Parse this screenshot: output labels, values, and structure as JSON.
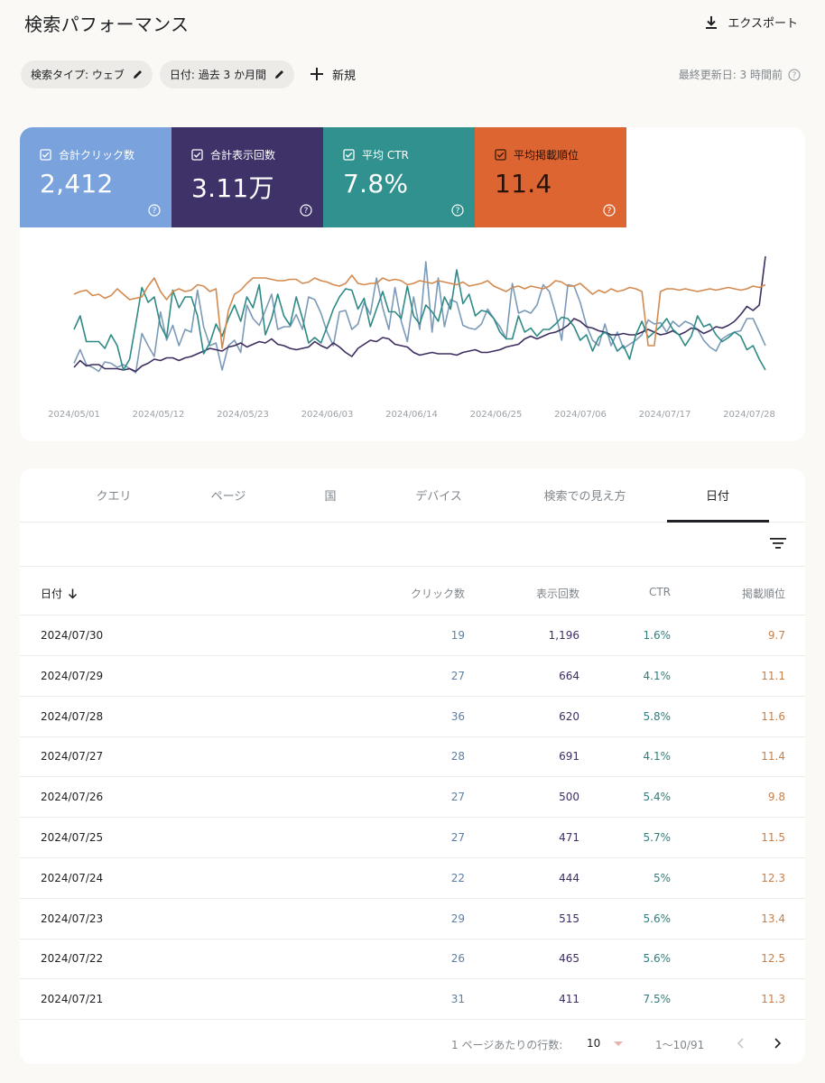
{
  "header": {
    "title": "検索パフォーマンス",
    "export_label": "エクスポート"
  },
  "filters": {
    "search_type": "検索タイプ: ウェブ",
    "date": "日付: 過去 3 か月間",
    "new_label": "新規",
    "last_updated": "最終更新日: 3 時間前"
  },
  "metrics": [
    {
      "label": "合計クリック数",
      "value": "2,412",
      "color": "#7aa3dd"
    },
    {
      "label": "合計表示回数",
      "value": "3.11万",
      "color": "#3e3269"
    },
    {
      "label": "平均 CTR",
      "value": "7.8%",
      "color": "#30918e"
    },
    {
      "label": "平均掲載順位",
      "value": "11.4",
      "color": "#dd6531"
    }
  ],
  "chart_data": {
    "type": "line",
    "x_tick_labels": [
      "2024/05/01",
      "2024/05/12",
      "2024/05/23",
      "2024/06/03",
      "2024/06/14",
      "2024/06/25",
      "2024/07/06",
      "2024/07/17",
      "2024/07/28"
    ],
    "axes_visible": false,
    "grid": false,
    "legend": "metric tiles above chart",
    "series": [
      {
        "name": "合計クリック数",
        "color": "#7b9ab8",
        "values": [
          0.17,
          0.27,
          0.16,
          0.14,
          0.11,
          0.18,
          0.17,
          0.14,
          0.16,
          0.13,
          0.1,
          0.39,
          0.3,
          0.22,
          0.55,
          0.34,
          0.45,
          0.3,
          0.42,
          0.4,
          0.71,
          0.44,
          0.3,
          0.32,
          0.12,
          0.3,
          0.34,
          0.25,
          0.6,
          0.5,
          0.45,
          0.56,
          0.68,
          0.42,
          0.44,
          0.44,
          0.53,
          0.42,
          0.66,
          0.64,
          0.54,
          0.4,
          0.3,
          0.55,
          0.56,
          0.42,
          0.46,
          0.62,
          0.53,
          0.8,
          0.58,
          0.42,
          0.73,
          0.48,
          0.33,
          0.66,
          0.42,
          0.92,
          0.4,
          0.8,
          0.44,
          0.64,
          0.62,
          0.45,
          0.43,
          0.42,
          0.46,
          0.57,
          0.5,
          0.44,
          0.35,
          0.76,
          0.54,
          0.56,
          0.54,
          0.6,
          0.75,
          0.7,
          0.54,
          0.34,
          0.75,
          0.74,
          0.62,
          0.45,
          0.34,
          0.3,
          0.46,
          0.3,
          0.4,
          0.28,
          0.31,
          0.34,
          0.38,
          0.49,
          0.46,
          0.47,
          0.4,
          0.48,
          0.44,
          0.48,
          0.46,
          0.42,
          0.34,
          0.29,
          0.26,
          0.35,
          0.38,
          0.4,
          0.41,
          0.5,
          0.5,
          0.4,
          0.3
        ]
      },
      {
        "name": "合計表示回数",
        "color": "#3e2e5f",
        "values": [
          0.14,
          0.19,
          0.15,
          0.16,
          0.16,
          0.13,
          0.13,
          0.13,
          0.12,
          0.13,
          0.11,
          0.15,
          0.17,
          0.2,
          0.19,
          0.21,
          0.21,
          0.19,
          0.21,
          0.22,
          0.24,
          0.26,
          0.28,
          0.27,
          0.26,
          0.29,
          0.3,
          0.32,
          0.29,
          0.31,
          0.33,
          0.32,
          0.35,
          0.31,
          0.3,
          0.28,
          0.27,
          0.28,
          0.29,
          0.33,
          0.3,
          0.28,
          0.32,
          0.29,
          0.25,
          0.22,
          0.28,
          0.31,
          0.34,
          0.33,
          0.36,
          0.35,
          0.31,
          0.3,
          0.29,
          0.25,
          0.23,
          0.24,
          0.25,
          0.24,
          0.24,
          0.24,
          0.23,
          0.25,
          0.26,
          0.27,
          0.25,
          0.25,
          0.26,
          0.27,
          0.29,
          0.3,
          0.31,
          0.35,
          0.37,
          0.35,
          0.37,
          0.39,
          0.4,
          0.42,
          0.45,
          0.5,
          0.48,
          0.44,
          0.43,
          0.41,
          0.4,
          0.38,
          0.38,
          0.39,
          0.38,
          0.38,
          0.4,
          0.42,
          0.4,
          0.38,
          0.39,
          0.41,
          0.38,
          0.4,
          0.43,
          0.42,
          0.39,
          0.41,
          0.44,
          0.43,
          0.45,
          0.48,
          0.53,
          0.59,
          0.56,
          0.6,
          0.96
        ]
      },
      {
        "name": "平均 CTR",
        "color": "#2e8a86",
        "values": [
          0.42,
          0.52,
          0.33,
          0.33,
          0.33,
          0.28,
          0.38,
          0.3,
          0.12,
          0.2,
          0.46,
          0.73,
          0.62,
          0.66,
          0.45,
          0.36,
          0.71,
          0.58,
          0.66,
          0.66,
          0.52,
          0.24,
          0.32,
          0.46,
          0.37,
          0.5,
          0.6,
          0.48,
          0.66,
          0.58,
          0.75,
          0.38,
          0.5,
          0.68,
          0.52,
          0.45,
          0.66,
          0.5,
          0.32,
          0.36,
          0.32,
          0.44,
          0.57,
          0.66,
          0.72,
          0.71,
          0.57,
          0.65,
          0.44,
          0.57,
          0.7,
          0.55,
          0.55,
          0.5,
          0.74,
          0.52,
          0.46,
          0.6,
          0.55,
          0.48,
          0.66,
          0.57,
          0.86,
          0.61,
          0.68,
          0.52,
          0.56,
          0.55,
          0.5,
          0.4,
          0.35,
          0.35,
          0.52,
          0.4,
          0.43,
          0.37,
          0.42,
          0.42,
          0.46,
          0.51,
          0.5,
          0.44,
          0.34,
          0.38,
          0.26,
          0.36,
          0.4,
          0.36,
          0.26,
          0.3,
          0.2,
          0.38,
          0.48,
          0.36,
          0.4,
          0.44,
          0.5,
          0.42,
          0.38,
          0.3,
          0.37,
          0.52,
          0.44,
          0.46,
          0.38,
          0.33,
          0.36,
          0.4,
          0.37,
          0.27,
          0.3,
          0.2,
          0.12
        ]
      },
      {
        "name": "平均掲載順位",
        "color": "#d38a4f",
        "values": [
          0.68,
          0.7,
          0.71,
          0.67,
          0.68,
          0.65,
          0.67,
          0.72,
          0.68,
          0.64,
          0.65,
          0.66,
          0.74,
          0.8,
          0.7,
          0.64,
          0.7,
          0.72,
          0.7,
          0.71,
          0.75,
          0.74,
          0.7,
          0.72,
          0.28,
          0.56,
          0.68,
          0.71,
          0.76,
          0.8,
          0.8,
          0.8,
          0.79,
          0.78,
          0.78,
          0.79,
          0.79,
          0.76,
          0.77,
          0.8,
          0.78,
          0.77,
          0.75,
          0.74,
          0.76,
          0.82,
          0.76,
          0.75,
          0.76,
          0.76,
          0.8,
          0.78,
          0.79,
          0.78,
          0.75,
          0.76,
          0.78,
          0.77,
          0.76,
          0.78,
          0.77,
          0.76,
          0.75,
          0.77,
          0.74,
          0.75,
          0.76,
          0.78,
          0.74,
          0.72,
          0.7,
          0.73,
          0.74,
          0.72,
          0.74,
          0.73,
          0.72,
          0.74,
          0.78,
          0.77,
          0.74,
          0.74,
          0.76,
          0.72,
          0.68,
          0.71,
          0.69,
          0.72,
          0.7,
          0.71,
          0.73,
          0.72,
          0.7,
          0.3,
          0.3,
          0.7,
          0.72,
          0.72,
          0.71,
          0.72,
          0.71,
          0.7,
          0.71,
          0.72,
          0.71,
          0.72,
          0.73,
          0.72,
          0.71,
          0.72,
          0.74,
          0.73,
          0.75
        ]
      }
    ]
  },
  "tabs": [
    "クエリ",
    "ページ",
    "国",
    "デバイス",
    "検索での見え方",
    "日付"
  ],
  "table": {
    "headers": {
      "date": "日付",
      "clicks": "クリック数",
      "impressions": "表示回数",
      "ctr": "CTR",
      "position": "掲載順位"
    },
    "rows": [
      {
        "date": "2024/07/30",
        "clicks": "19",
        "impressions": "1,196",
        "ctr": "1.6%",
        "position": "9.7"
      },
      {
        "date": "2024/07/29",
        "clicks": "27",
        "impressions": "664",
        "ctr": "4.1%",
        "position": "11.1"
      },
      {
        "date": "2024/07/28",
        "clicks": "36",
        "impressions": "620",
        "ctr": "5.8%",
        "position": "11.6"
      },
      {
        "date": "2024/07/27",
        "clicks": "28",
        "impressions": "691",
        "ctr": "4.1%",
        "position": "11.4"
      },
      {
        "date": "2024/07/26",
        "clicks": "27",
        "impressions": "500",
        "ctr": "5.4%",
        "position": "9.8"
      },
      {
        "date": "2024/07/25",
        "clicks": "27",
        "impressions": "471",
        "ctr": "5.7%",
        "position": "11.5"
      },
      {
        "date": "2024/07/24",
        "clicks": "22",
        "impressions": "444",
        "ctr": "5%",
        "position": "12.3"
      },
      {
        "date": "2024/07/23",
        "clicks": "29",
        "impressions": "515",
        "ctr": "5.6%",
        "position": "13.4"
      },
      {
        "date": "2024/07/22",
        "clicks": "26",
        "impressions": "465",
        "ctr": "5.6%",
        "position": "12.5"
      },
      {
        "date": "2024/07/21",
        "clicks": "31",
        "impressions": "411",
        "ctr": "7.5%",
        "position": "11.3"
      }
    ]
  },
  "pagination": {
    "rows_per_page_label": "1 ページあたりの行数:",
    "rows_per_page": "10",
    "range": "1〜10/91"
  },
  "colors": {
    "clicks_text": "#5b7fa6",
    "impressions_text": "#3e2e5f",
    "ctr_text": "#2e7f7c",
    "position_text": "#c5804c"
  }
}
